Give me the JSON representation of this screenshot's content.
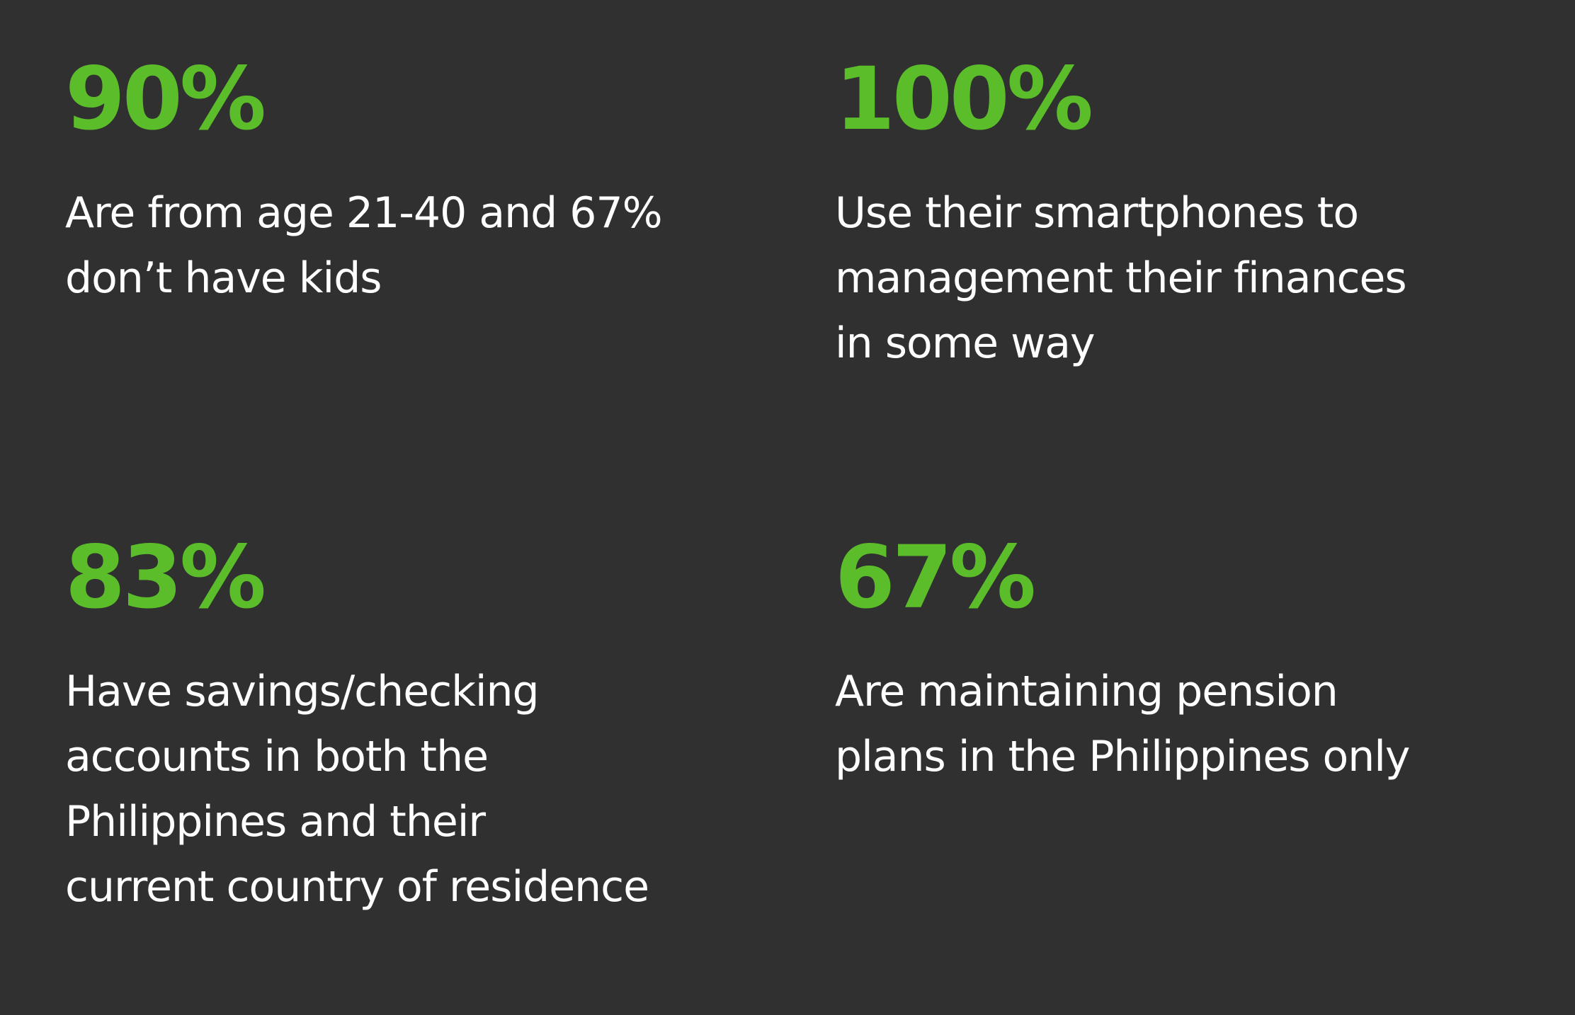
{
  "stats": [
    {
      "value": "90%",
      "lines": [
        "Are from age 21-40 and 67%",
        "don’t have kids"
      ]
    },
    {
      "value": "100%",
      "lines": [
        "Use their smartphones to",
        "management their finances",
        "in some way"
      ]
    },
    {
      "value": "83%",
      "lines": [
        "Have savings/checking",
        "accounts in both the",
        "Philippines and their",
        "current country of residence"
      ]
    },
    {
      "value": "67%",
      "lines": [
        "Are maintaining pension",
        "plans in the Philippines only"
      ]
    }
  ],
  "colors": {
    "background": "#303030",
    "accent": "#5cbd2b",
    "text": "#ffffff"
  }
}
